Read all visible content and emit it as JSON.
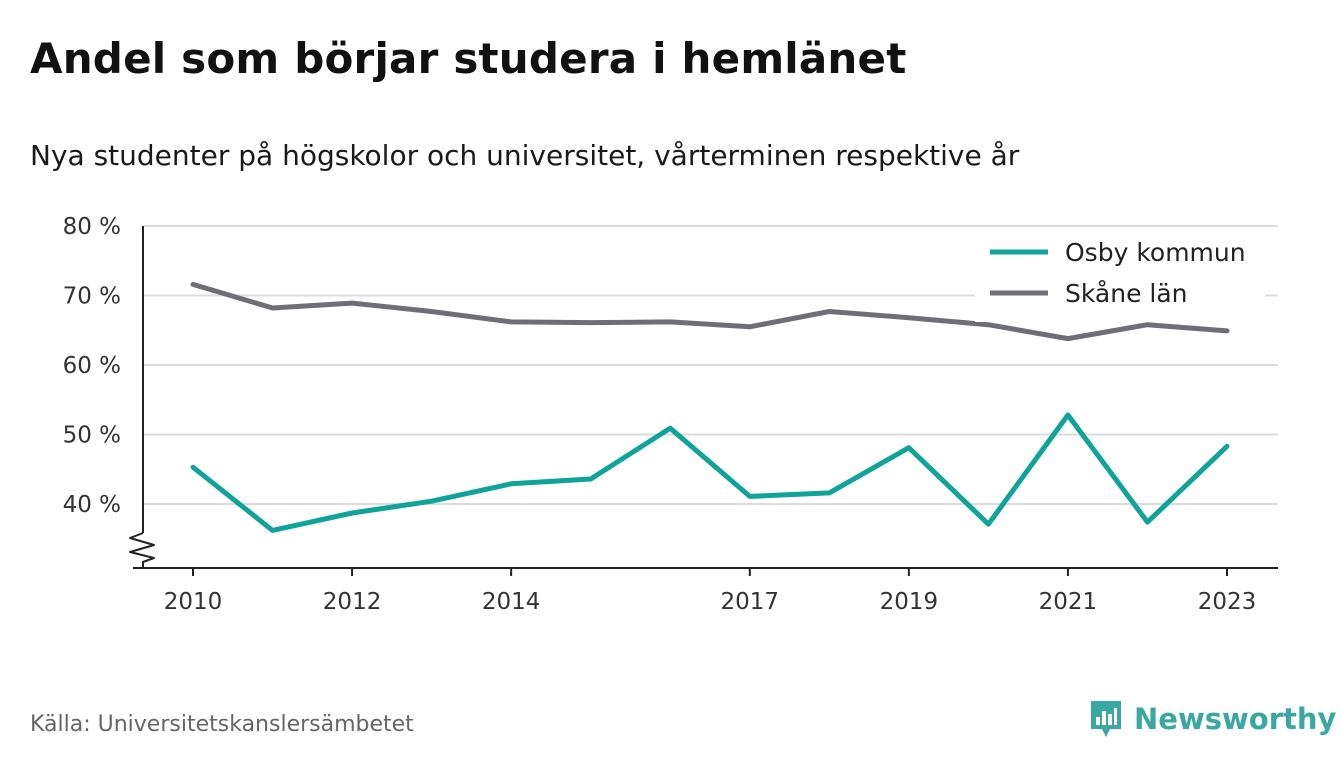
{
  "header": {
    "title": "Andel som börjar studera i hemlänet",
    "subtitle": "Nya studenter på högskolor och universitet, vårterminen respektive år"
  },
  "footer": {
    "source": "Källa: Universitetskanslersämbetet",
    "brand": "Newsworthy",
    "brand_icon": "bar-chart-badge-icon"
  },
  "colors": {
    "osby": "#0fa39a",
    "skane": "#6e6e76",
    "grid": "#dcdcdc",
    "axis": "#222222",
    "brand": "#3aa8a0"
  },
  "chart_data": {
    "type": "line",
    "title": "Andel som börjar studera i hemlänet",
    "subtitle": "Nya studenter på högskolor och universitet, vårterminen respektive år",
    "xlabel": "",
    "ylabel": "",
    "x": [
      2010,
      2011,
      2012,
      2013,
      2014,
      2015,
      2016,
      2017,
      2018,
      2019,
      2020,
      2021,
      2022,
      2023
    ],
    "x_ticks": [
      2010,
      2012,
      2014,
      2017,
      2019,
      2021,
      2023
    ],
    "x_tick_labels": [
      "2010",
      "2012",
      "2014",
      "2017",
      "2019",
      "2021",
      "2023"
    ],
    "y_ticks": [
      40,
      50,
      60,
      70,
      80
    ],
    "y_tick_labels": [
      "40 %",
      "50 %",
      "60 %",
      "70 %",
      "80 %"
    ],
    "ylim": [
      31,
      80
    ],
    "y_axis_break": true,
    "grid": true,
    "legend_position": "top-right",
    "series": [
      {
        "name": "Osby kommun",
        "color": "#0fa39a",
        "values": [
          45.3,
          36.2,
          38.7,
          40.4,
          42.9,
          43.6,
          50.9,
          41.1,
          41.6,
          48.1,
          37.1,
          52.8,
          37.4,
          48.3
        ]
      },
      {
        "name": "Skåne län",
        "color": "#6e6e76",
        "values": [
          71.6,
          68.2,
          68.9,
          67.7,
          66.2,
          66.1,
          66.2,
          65.5,
          67.7,
          66.8,
          65.8,
          63.8,
          65.8,
          64.9
        ]
      }
    ]
  }
}
